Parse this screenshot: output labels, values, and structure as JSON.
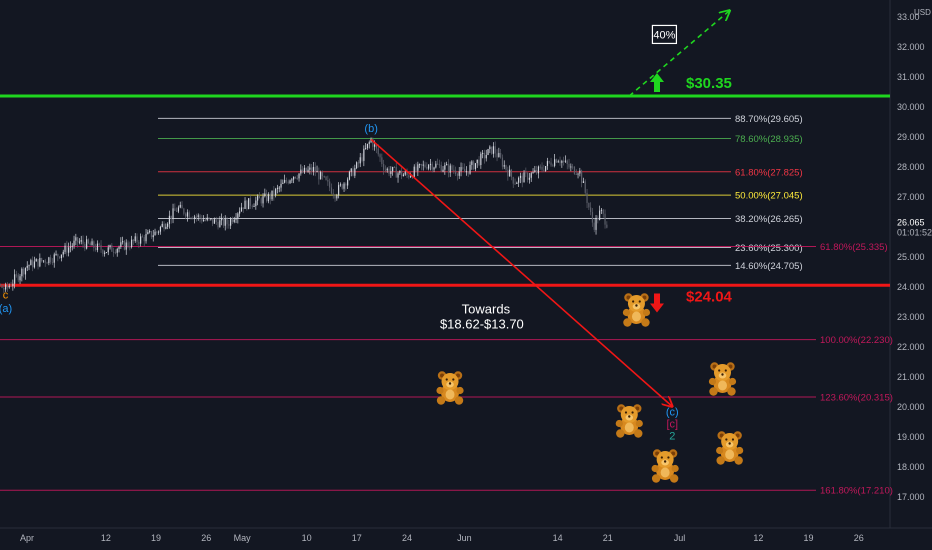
{
  "chart_data": {
    "type": "candlestick",
    "currency": "USD",
    "y_axis": {
      "range": [
        16.5,
        33.4
      ],
      "ticks": [
        "33.00",
        "32.000",
        "31.000",
        "30.000",
        "29.000",
        "28.000",
        "27.000",
        "26.000",
        "25.000",
        "24.000",
        "23.000",
        "22.000",
        "21.000",
        "20.000",
        "19.000",
        "18.000",
        "17.000"
      ],
      "tick_values": [
        33,
        32,
        31,
        30,
        29,
        28,
        27,
        26,
        25,
        24,
        23,
        22,
        21,
        20,
        19,
        18,
        17
      ]
    },
    "x_axis": {
      "ticks": [
        "Apr",
        "12",
        "19",
        "26",
        "May",
        "10",
        "17",
        "24",
        "Jun",
        "14",
        "21",
        "Jul",
        "12",
        "19",
        "26"
      ],
      "tick_dates": [
        "2021-04-01",
        "2021-04-12",
        "2021-04-19",
        "2021-04-26",
        "2021-05-01",
        "2021-05-10",
        "2021-05-17",
        "2021-05-24",
        "2021-06-01",
        "2021-06-14",
        "2021-06-21",
        "2021-07-01",
        "2021-07-12",
        "2021-07-19",
        "2021-07-26"
      ]
    },
    "last_price": {
      "value": "26.065",
      "countdown": "01:01:52",
      "color": "#ffffff"
    },
    "close_path": [
      {
        "x": "2021-03-24",
        "y": 24.6
      },
      {
        "x": "2021-03-29",
        "y": 23.9
      },
      {
        "x": "2021-04-01",
        "y": 24.7
      },
      {
        "x": "2021-04-05",
        "y": 25.0
      },
      {
        "x": "2021-04-08",
        "y": 25.5
      },
      {
        "x": "2021-04-12",
        "y": 25.2
      },
      {
        "x": "2021-04-15",
        "y": 25.4
      },
      {
        "x": "2021-04-19",
        "y": 25.8
      },
      {
        "x": "2021-04-22",
        "y": 26.6
      },
      {
        "x": "2021-04-26",
        "y": 26.2
      },
      {
        "x": "2021-04-29",
        "y": 26.1
      },
      {
        "x": "2021-05-01",
        "y": 26.7
      },
      {
        "x": "2021-05-05",
        "y": 27.0
      },
      {
        "x": "2021-05-08",
        "y": 27.7
      },
      {
        "x": "2021-05-11",
        "y": 27.9
      },
      {
        "x": "2021-05-14",
        "y": 27.1
      },
      {
        "x": "2021-05-17",
        "y": 28.0
      },
      {
        "x": "2021-05-19",
        "y": 28.9
      },
      {
        "x": "2021-05-21",
        "y": 27.9
      },
      {
        "x": "2021-05-24",
        "y": 27.7
      },
      {
        "x": "2021-05-27",
        "y": 28.1
      },
      {
        "x": "2021-06-01",
        "y": 27.8
      },
      {
        "x": "2021-06-05",
        "y": 28.6
      },
      {
        "x": "2021-06-08",
        "y": 27.5
      },
      {
        "x": "2021-06-11",
        "y": 27.8
      },
      {
        "x": "2021-06-14",
        "y": 28.3
      },
      {
        "x": "2021-06-16",
        "y": 27.9
      },
      {
        "x": "2021-06-17",
        "y": 27.9
      },
      {
        "x": "2021-06-18",
        "y": 27.0
      },
      {
        "x": "2021-06-19",
        "y": 26.0
      },
      {
        "x": "2021-06-20",
        "y": 26.5
      },
      {
        "x": "2021-06-21",
        "y": 26.065
      }
    ],
    "horizontal_levels": [
      {
        "name": "resistance",
        "value": 30.35,
        "label": "$30.35",
        "color": "#1fd61f"
      },
      {
        "name": "support",
        "value": 24.04,
        "label": "$24.04",
        "color": "#f01616"
      }
    ],
    "fib_levels": [
      {
        "label": "88.70%(29.605)",
        "value": 29.605,
        "color": "#d1d4dc"
      },
      {
        "label": "78.60%(28.935)",
        "value": 28.935,
        "color": "#4caf50"
      },
      {
        "label": "61.80%(27.825)",
        "value": 27.825,
        "color": "#f23645"
      },
      {
        "label": "50.00%(27.045)",
        "value": 27.045,
        "color": "#ffeb3b"
      },
      {
        "label": "38.20%(26.265)",
        "value": 26.265,
        "color": "#d1d4dc"
      },
      {
        "label": "23.60%(25.300)",
        "value": 25.3,
        "color": "#d1d4dc"
      },
      {
        "label": "14.60%(24.705)",
        "value": 24.705,
        "color": "#d1d4dc"
      }
    ],
    "extension_levels": [
      {
        "label": "61.80%(25.335)",
        "value": 25.335,
        "color": "#c2185b"
      },
      {
        "label": "100.00%(22.230)",
        "value": 22.23,
        "color": "#c2185b"
      },
      {
        "label": "123.60%(20.315)",
        "value": 20.315,
        "color": "#c2185b"
      },
      {
        "label": "161.80%(17.210)",
        "value": 17.21,
        "color": "#c2185b"
      }
    ],
    "wave_labels": [
      {
        "text": "c",
        "x": "2021-03-29",
        "y": 23.6,
        "color": "#ff9800"
      },
      {
        "text": "(a)",
        "x": "2021-03-29",
        "y": 23.15,
        "color": "#2196f3"
      },
      {
        "text": "(b)",
        "x": "2021-05-19",
        "y": 29.15,
        "color": "#2196f3"
      },
      {
        "text": "(c)",
        "x": "2021-06-30",
        "y": 19.7,
        "color": "#2196f3"
      },
      {
        "text": "[c]",
        "x": "2021-06-30",
        "y": 19.3,
        "color": "#c2185b"
      },
      {
        "text": "2",
        "x": "2021-06-30",
        "y": 18.9,
        "color": "#26a69a"
      }
    ],
    "projection_arrow": {
      "from": {
        "x": "2021-05-19",
        "y": 28.9
      },
      "to": {
        "x": "2021-06-30",
        "y": 20.0
      },
      "color": "#f01616"
    },
    "upside_arrow": {
      "from": {
        "x": "2021-06-24",
        "y": 30.35
      },
      "to": {
        "x": "2021-07-08",
        "y": 33.2
      },
      "label": "40%",
      "color": "#1fd61f"
    },
    "annotations": {
      "towards_line1": "Towards",
      "towards_line2": "$18.62-$13.70",
      "up_arrow_color": "#1fd61f",
      "down_arrow_color": "#f01616",
      "bear_icon": "teddy-bear-icon",
      "bears": [
        {
          "x": "2021-06-25",
          "y": 23.2
        },
        {
          "x": "2021-05-30",
          "y": 20.6
        },
        {
          "x": "2021-06-24",
          "y": 19.5
        },
        {
          "x": "2021-06-29",
          "y": 18.0
        },
        {
          "x": "2021-07-07",
          "y": 20.9
        },
        {
          "x": "2021-07-08",
          "y": 18.6
        }
      ]
    }
  }
}
